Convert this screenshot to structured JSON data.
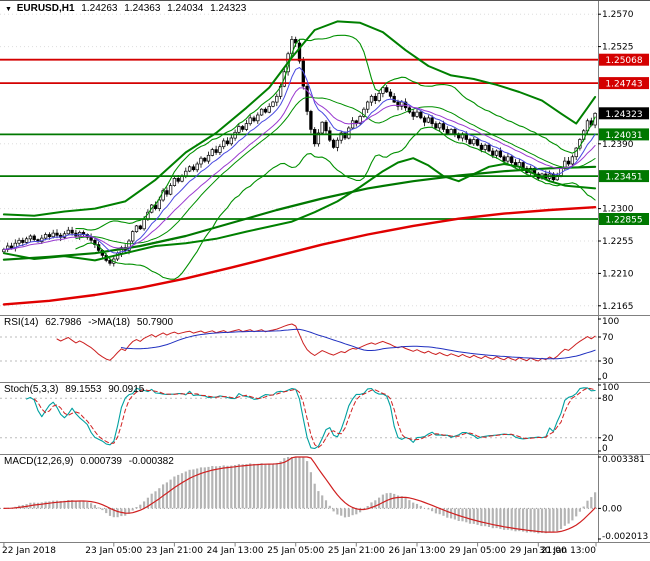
{
  "header": {
    "dropdown_icon": "▼",
    "symbol": "EURUSD,H1",
    "open": "1.24263",
    "high": "1.24363",
    "low": "1.24034",
    "close": "1.24323"
  },
  "panels": {
    "rsi": {
      "label": "RSI(14)",
      "value": "62.7986",
      "ma_label": "->MA(18)",
      "ma_value": "50.7900"
    },
    "stoch": {
      "label": "Stoch(5,3,3)",
      "value": "89.1553",
      "signal_value": "90.0915"
    },
    "macd": {
      "label": "MACD(12,26,9)",
      "value": "0.000739",
      "signal_value": "-0.000382"
    }
  },
  "y_axis": {
    "ticks": [
      {
        "text": "1.2570",
        "value": 1.257
      },
      {
        "text": "1.2525",
        "value": 1.2525
      },
      {
        "text": "1.2390",
        "value": 1.239
      },
      {
        "text": "1.2300",
        "value": 1.23
      },
      {
        "text": "1.2255",
        "value": 1.2255
      },
      {
        "text": "1.2210",
        "value": 1.221
      },
      {
        "text": "1.2165",
        "value": 1.2165
      }
    ]
  },
  "chart_data": {
    "main": {
      "type": "candlestick",
      "title": "EURUSD,H1",
      "x_start": "22 Jan 2018 00:00",
      "x_end": "30 Jan 2018 13:00",
      "ylim": [
        1.2155,
        1.258
      ],
      "first_open": 1.224,
      "closes": [
        1.2243,
        1.2248,
        1.2245,
        1.2252,
        1.2256,
        1.2253,
        1.2258,
        1.2262,
        1.2257,
        1.2254,
        1.2259,
        1.2264,
        1.2261,
        1.2266,
        1.2263,
        1.226,
        1.2265,
        1.227,
        1.2266,
        1.2262,
        1.2267,
        1.2264,
        1.226,
        1.2256,
        1.225,
        1.2242,
        1.2235,
        1.2228,
        1.2224,
        1.223,
        1.2238,
        1.2246,
        1.2242,
        1.2255,
        1.2268,
        1.2276,
        1.2272,
        1.2285,
        1.2295,
        1.2305,
        1.23,
        1.2312,
        1.2325,
        1.232,
        1.2332,
        1.2342,
        1.2338,
        1.2345,
        1.2352,
        1.2358,
        1.2354,
        1.2362,
        1.237,
        1.2366,
        1.2374,
        1.2382,
        1.2378,
        1.2386,
        1.2394,
        1.239,
        1.2398,
        1.2406,
        1.2414,
        1.241,
        1.2418,
        1.2426,
        1.2422,
        1.243,
        1.2438,
        1.2434,
        1.2442,
        1.2448,
        1.2456,
        1.247,
        1.249,
        1.2515,
        1.2535,
        1.253,
        1.2505,
        1.247,
        1.2435,
        1.241,
        1.239,
        1.2405,
        1.242,
        1.2408,
        1.2395,
        1.2385,
        1.2395,
        1.2405,
        1.2398,
        1.2412,
        1.2422,
        1.2418,
        1.2428,
        1.2438,
        1.2448,
        1.2456,
        1.245,
        1.246,
        1.2468,
        1.2462,
        1.2456,
        1.2448,
        1.2442,
        1.2448,
        1.244,
        1.2434,
        1.2428,
        1.2434,
        1.2426,
        1.242,
        1.2426,
        1.2418,
        1.2412,
        1.2418,
        1.241,
        1.2404,
        1.241,
        1.2404,
        1.2398,
        1.2404,
        1.2396,
        1.239,
        1.2396,
        1.2388,
        1.2382,
        1.2388,
        1.238,
        1.2374,
        1.238,
        1.2372,
        1.2366,
        1.2372,
        1.2364,
        1.2358,
        1.2364,
        1.2356,
        1.235,
        1.2356,
        1.2348,
        1.2342,
        1.2348,
        1.2342,
        1.2348,
        1.234,
        1.2346,
        1.2356,
        1.2366,
        1.2362,
        1.2372,
        1.2384,
        1.2396,
        1.2408,
        1.2422,
        1.2416,
        1.24323
      ],
      "current_price": {
        "text": "1.24323",
        "value": 1.24323,
        "color": "#000000"
      },
      "levels": [
        {
          "text": "1.25068",
          "value": 1.25068,
          "color": "#d40000"
        },
        {
          "text": "1.24743",
          "value": 1.24743,
          "color": "#d40000"
        },
        {
          "text": "1.24031",
          "value": 1.24031,
          "color": "#007800"
        },
        {
          "text": "1.23451",
          "value": 1.23451,
          "color": "#007800"
        },
        {
          "text": "1.22855",
          "value": 1.22855,
          "color": "#007800"
        }
      ],
      "x_labels": [
        {
          "text": "22 Jan 2018",
          "index": 0
        },
        {
          "text": "23 Jan 05:00",
          "index": 29
        },
        {
          "text": "23 Jan 21:00",
          "index": 45
        },
        {
          "text": "24 Jan 13:00",
          "index": 61
        },
        {
          "text": "25 Jan 05:00",
          "index": 77
        },
        {
          "text": "25 Jan 21:00",
          "index": 93
        },
        {
          "text": "26 Jan 13:00",
          "index": 109
        },
        {
          "text": "29 Jan 05:00",
          "index": 125
        },
        {
          "text": "29 Jan 21:00",
          "index": 141
        },
        {
          "text": "30 Jan 13:00",
          "index": 157
        }
      ],
      "overlays": {
        "bollinger": {
          "period": 20,
          "deviation": 2,
          "color": "#009000"
        },
        "ema_fast": {
          "period": 8,
          "color": "#4a4ae0"
        },
        "ema_mid": {
          "period": 16,
          "color": "#9a3ad0"
        },
        "outer_band_upper": {
          "color": "#008000",
          "points": [
            [
              0,
              1.2292
            ],
            [
              8,
              1.229
            ],
            [
              16,
              1.2296
            ],
            [
              24,
              1.23
            ],
            [
              32,
              1.231
            ],
            [
              40,
              1.234
            ],
            [
              48,
              1.2378
            ],
            [
              56,
              1.2405
            ],
            [
              64,
              1.244
            ],
            [
              70,
              1.2468
            ],
            [
              76,
              1.251
            ],
            [
              82,
              1.2548
            ],
            [
              88,
              1.256
            ],
            [
              94,
              1.2558
            ],
            [
              100,
              1.2545
            ],
            [
              106,
              1.252
            ],
            [
              112,
              1.2498
            ],
            [
              118,
              1.2485
            ],
            [
              124,
              1.248
            ],
            [
              130,
              1.2472
            ],
            [
              136,
              1.2462
            ],
            [
              142,
              1.245
            ],
            [
              147,
              1.2432
            ],
            [
              151,
              1.2418
            ],
            [
              154,
              1.244
            ],
            [
              156,
              1.2455
            ]
          ]
        },
        "outer_band_lower": {
          "color": "#008000",
          "points": [
            [
              0,
              1.2238
            ],
            [
              8,
              1.223
            ],
            [
              16,
              1.2234
            ],
            [
              24,
              1.2228
            ],
            [
              32,
              1.2238
            ],
            [
              40,
              1.2248
            ],
            [
              48,
              1.2252
            ],
            [
              56,
              1.2258
            ],
            [
              64,
              1.2268
            ],
            [
              70,
              1.2275
            ],
            [
              76,
              1.2282
            ],
            [
              82,
              1.2295
            ],
            [
              88,
              1.231
            ],
            [
              94,
              1.233
            ],
            [
              100,
              1.2352
            ],
            [
              104,
              1.2364
            ],
            [
              108,
              1.237
            ],
            [
              112,
              1.236
            ],
            [
              116,
              1.2345
            ],
            [
              120,
              1.2338
            ],
            [
              124,
              1.2348
            ],
            [
              128,
              1.2358
            ],
            [
              132,
              1.2362
            ],
            [
              136,
              1.2358
            ],
            [
              140,
              1.2348
            ],
            [
              144,
              1.2338
            ],
            [
              148,
              1.2332
            ],
            [
              152,
              1.233
            ],
            [
              156,
              1.2328
            ]
          ]
        },
        "slow_ma_green": {
          "color": "#007800",
          "points": [
            [
              0,
              1.2229
            ],
            [
              12,
              1.2233
            ],
            [
              24,
              1.2238
            ],
            [
              36,
              1.2248
            ],
            [
              48,
              1.2262
            ],
            [
              60,
              1.228
            ],
            [
              72,
              1.2298
            ],
            [
              84,
              1.2314
            ],
            [
              96,
              1.2328
            ],
            [
              108,
              1.2338
            ],
            [
              120,
              1.2346
            ],
            [
              132,
              1.2352
            ],
            [
              144,
              1.2356
            ],
            [
              156,
              1.2358
            ]
          ]
        },
        "slow_ma_red": {
          "color": "#e00000",
          "points": [
            [
              0,
              1.2167
            ],
            [
              12,
              1.2172
            ],
            [
              24,
              1.218
            ],
            [
              36,
              1.219
            ],
            [
              48,
              1.2203
            ],
            [
              60,
              1.2218
            ],
            [
              72,
              1.2234
            ],
            [
              84,
              1.225
            ],
            [
              96,
              1.2264
            ],
            [
              108,
              1.2276
            ],
            [
              120,
              1.2286
            ],
            [
              132,
              1.2293
            ],
            [
              144,
              1.2298
            ],
            [
              156,
              1.2302
            ]
          ]
        }
      }
    },
    "rsi": {
      "type": "line",
      "derived_from": "main.closes",
      "period": 14,
      "ma_period": 18,
      "range": [
        0,
        100
      ],
      "levels": [
        70,
        30
      ],
      "last_value": 62.7986,
      "ma_last_value": 50.79,
      "ticks": [
        {
          "text": "100",
          "value": 100
        },
        {
          "text": "70",
          "value": 70
        },
        {
          "text": "30",
          "value": 30
        },
        {
          "text": "0",
          "value": 0
        }
      ],
      "colors": {
        "rsi": "#cc2020",
        "ma": "#2030c0"
      }
    },
    "stoch": {
      "type": "line",
      "derived_from": "main.closes",
      "k_period": 5,
      "d_period": 3,
      "slowing": 3,
      "range": [
        0,
        100
      ],
      "levels": [
        80,
        20
      ],
      "last_k": 89.1553,
      "last_d": 90.0915,
      "ticks": [
        {
          "text": "100",
          "value": 100
        },
        {
          "text": "80",
          "value": 80
        },
        {
          "text": "20",
          "value": 20
        },
        {
          "text": "0",
          "value": 0
        }
      ],
      "colors": {
        "k": "#00a0a0",
        "d": "#d02020"
      }
    },
    "macd": {
      "type": "histogram+line",
      "derived_from": "main.closes",
      "fast": 12,
      "slow": 26,
      "signal": 9,
      "range": [
        -0.002013,
        0.003381
      ],
      "last_main": 0.000739,
      "last_signal": -0.000382,
      "ticks": [
        {
          "text": "0.003381",
          "value": 0.003381
        },
        {
          "text": "0.00",
          "value": 0
        },
        {
          "text": "-0.002013",
          "value": -0.002013
        }
      ],
      "colors": {
        "histogram": "#b4b4b4",
        "signal": "#d02020"
      }
    }
  }
}
